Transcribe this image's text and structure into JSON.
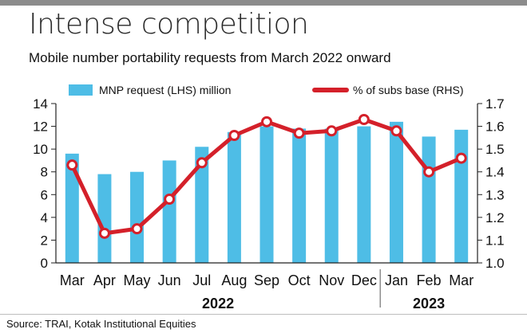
{
  "title": "Intense competition",
  "subtitle": "Mobile number portability requests from March 2022 onward",
  "source": "Source: TRAI, Kotak Institutional Equities",
  "colors": {
    "bar": "#4ebde6",
    "line": "#d4202a",
    "axis": "#222222",
    "rule": "#8c8c8c"
  },
  "chart_data": {
    "type": "bar",
    "categories": [
      "Mar",
      "Apr",
      "May",
      "Jun",
      "Jul",
      "Aug",
      "Sep",
      "Oct",
      "Nov",
      "Dec",
      "Jan",
      "Feb",
      "Mar"
    ],
    "year_groups": [
      {
        "label": "2022",
        "from": 0,
        "to": 9
      },
      {
        "label": "2023",
        "from": 10,
        "to": 12
      }
    ],
    "series": [
      {
        "name": "MNP request (LHS) million",
        "type": "bar",
        "axis": "left",
        "values": [
          9.6,
          7.8,
          8.0,
          9.0,
          10.2,
          11.5,
          12.0,
          11.8,
          11.8,
          12.0,
          12.4,
          11.1,
          11.7
        ]
      },
      {
        "name": "% of subs base (RHS)",
        "type": "line",
        "axis": "right",
        "values": [
          1.43,
          1.13,
          1.15,
          1.28,
          1.44,
          1.56,
          1.62,
          1.57,
          1.58,
          1.63,
          1.58,
          1.4,
          1.46
        ]
      }
    ],
    "left_axis": {
      "ylim": [
        0,
        14
      ],
      "ticks": [
        "0",
        "2",
        "4",
        "6",
        "8",
        "10",
        "12",
        "14"
      ]
    },
    "right_axis": {
      "ylim": [
        1.0,
        1.7
      ],
      "ticks": [
        "1.0",
        "1.1",
        "1.2",
        "1.3",
        "1.4",
        "1.5",
        "1.6",
        "1.7"
      ]
    },
    "legend_position": "top",
    "grid": false
  }
}
